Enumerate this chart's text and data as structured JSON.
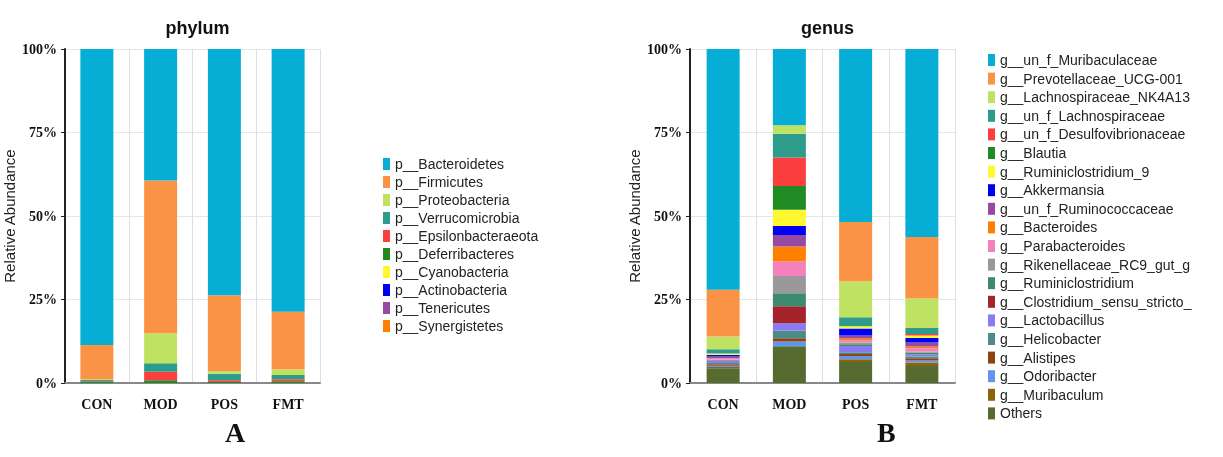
{
  "chart_data": [
    {
      "type": "bar",
      "title": "phylum",
      "ylabel": "Relative Abundance",
      "categories": [
        "CON",
        "MOD",
        "POS",
        "FMT"
      ],
      "stacked": true,
      "grid": true,
      "legend": "right",
      "annotations": [
        "A"
      ],
      "ylim": [
        0,
        100
      ],
      "yticks": [
        {
          "value": 0,
          "label": "0%"
        },
        {
          "value": 25,
          "label": "25%"
        },
        {
          "value": 50,
          "label": "50%"
        },
        {
          "value": 75,
          "label": "75%"
        },
        {
          "value": 100,
          "label": "100%"
        }
      ],
      "series": [
        {
          "name": "p__Synergistetes",
          "color": "#ff7f00",
          "values": [
            0,
            0,
            0,
            0
          ]
        },
        {
          "name": "p__Tenericutes",
          "color": "#974aa1",
          "values": [
            0,
            0,
            0,
            0
          ]
        },
        {
          "name": "p__Actinobacteria",
          "color": "#0000f5",
          "values": [
            null,
            0,
            0,
            0
          ]
        },
        {
          "name": "p__Cyanobacteria",
          "color": "#fff72f",
          "values": [
            null,
            0,
            0,
            0
          ]
        },
        {
          "name": "p__Deferribacteres",
          "color": "#208b22",
          "values": [
            0.3,
            0.8,
            0.3,
            0.5
          ]
        },
        {
          "name": "p__Epsilonbacteraeota",
          "color": "#fb3f3f",
          "values": [
            0.2,
            2.6,
            0.5,
            0.6
          ]
        },
        {
          "name": "p__Verrucomicrobia",
          "color": "#2e9c8a",
          "values": [
            0.5,
            2.5,
            2.0,
            1.3
          ]
        },
        {
          "name": "p__Proteobacteria",
          "color": "#bfe263",
          "values": [
            0.2,
            9.0,
            0.8,
            1.7
          ]
        },
        {
          "name": "p__Firmicutes",
          "color": "#fb9346",
          "values": [
            10.2,
            45.7,
            22.7,
            17.2
          ]
        },
        {
          "name": "p__Bacteroidetes",
          "color": "#06aed5",
          "values": [
            88.6,
            39.4,
            73.7,
            78.7
          ]
        }
      ]
    },
    {
      "type": "bar",
      "title": "genus",
      "ylabel": "Relative Abundance",
      "categories": [
        "CON",
        "MOD",
        "POS",
        "FMT"
      ],
      "stacked": true,
      "grid": true,
      "legend": "right",
      "annotations": [
        "B"
      ],
      "ylim": [
        0,
        100
      ],
      "yticks": [
        {
          "value": 0,
          "label": "0%"
        },
        {
          "value": 25,
          "label": "25%"
        },
        {
          "value": 50,
          "label": "50%"
        },
        {
          "value": 75,
          "label": "75%"
        },
        {
          "value": 100,
          "label": "100%"
        }
      ],
      "series": [
        {
          "name": "Others",
          "color": "#556b2f",
          "values": [
            4.4,
            11.0,
            6.3,
            5.1
          ]
        },
        {
          "name": "g__Muribaculum",
          "color": "#8b6508",
          "values": [
            0.4,
            0,
            0.8,
            1.0
          ]
        },
        {
          "name": "g__Odoribacter",
          "color": "#6495ed",
          "values": [
            0.4,
            1.4,
            1.0,
            0.6
          ]
        },
        {
          "name": "g__Alistipes",
          "color": "#8b4513",
          "values": [
            0.4,
            1.0,
            0.6,
            0.7
          ]
        },
        {
          "name": "g__Helicobacter",
          "color": "#4e8a8a",
          "values": [
            0.4,
            2.3,
            0.5,
            0.5
          ]
        },
        {
          "name": "g__Lactobacillus",
          "color": "#8a7bf3",
          "values": [
            0.6,
            2.2,
            1.9,
            0.6
          ]
        },
        {
          "name": "g__Clostridium_sensu_stricto_",
          "color": "#a5232a",
          "values": [
            0,
            5.1,
            0,
            0
          ]
        },
        {
          "name": "g__Ruminiclostridium",
          "color": "#3e8a6e",
          "values": [
            0,
            3.9,
            0.5,
            0.6
          ]
        },
        {
          "name": "g__Rikenellaceae_RC9_gut_g",
          "color": "#999999",
          "values": [
            0.4,
            5.1,
            0.5,
            0.3
          ]
        },
        {
          "name": "g__Parabacteroides",
          "color": "#f481bd",
          "values": [
            0.5,
            4.4,
            0.6,
            1.0
          ]
        },
        {
          "name": "g__Bacteroides",
          "color": "#ff7f00",
          "values": [
            0,
            4.5,
            0.6,
            0.5
          ]
        },
        {
          "name": "g__un_f_Ruminococcaceae",
          "color": "#974aa1",
          "values": [
            0.4,
            3.4,
            0.9,
            1.2
          ]
        },
        {
          "name": "g__Akkermansia",
          "color": "#0000f5",
          "values": [
            0.5,
            2.7,
            2.1,
            1.4
          ]
        },
        {
          "name": "g__Ruminiclostridium_9",
          "color": "#fff72f",
          "values": [
            0.4,
            4.9,
            0.7,
            0.7
          ]
        },
        {
          "name": "g__Blautia",
          "color": "#208b22",
          "values": [
            0,
            7.1,
            0,
            0
          ]
        },
        {
          "name": "g__un_f_Desulfovibrionaceae",
          "color": "#fb3f3f",
          "values": [
            0,
            8.5,
            0,
            0.5
          ]
        },
        {
          "name": "g__un_f_Lachnospiraceae",
          "color": "#2e9c8a",
          "values": [
            1.3,
            7.1,
            2.7,
            1.8
          ]
        },
        {
          "name": "g__Lachnospiraceae_NK4A13",
          "color": "#bfe263",
          "values": [
            3.8,
            2.6,
            10.8,
            8.8
          ]
        },
        {
          "name": "g__Prevotellaceae_UCG-001",
          "color": "#fb9346",
          "values": [
            14.0,
            0,
            17.7,
            18.4
          ]
        },
        {
          "name": "g__un_f_Muribaculaceae",
          "color": "#06aed5",
          "values": [
            72.1,
            22.8,
            51.8,
            56.3
          ]
        }
      ]
    }
  ]
}
